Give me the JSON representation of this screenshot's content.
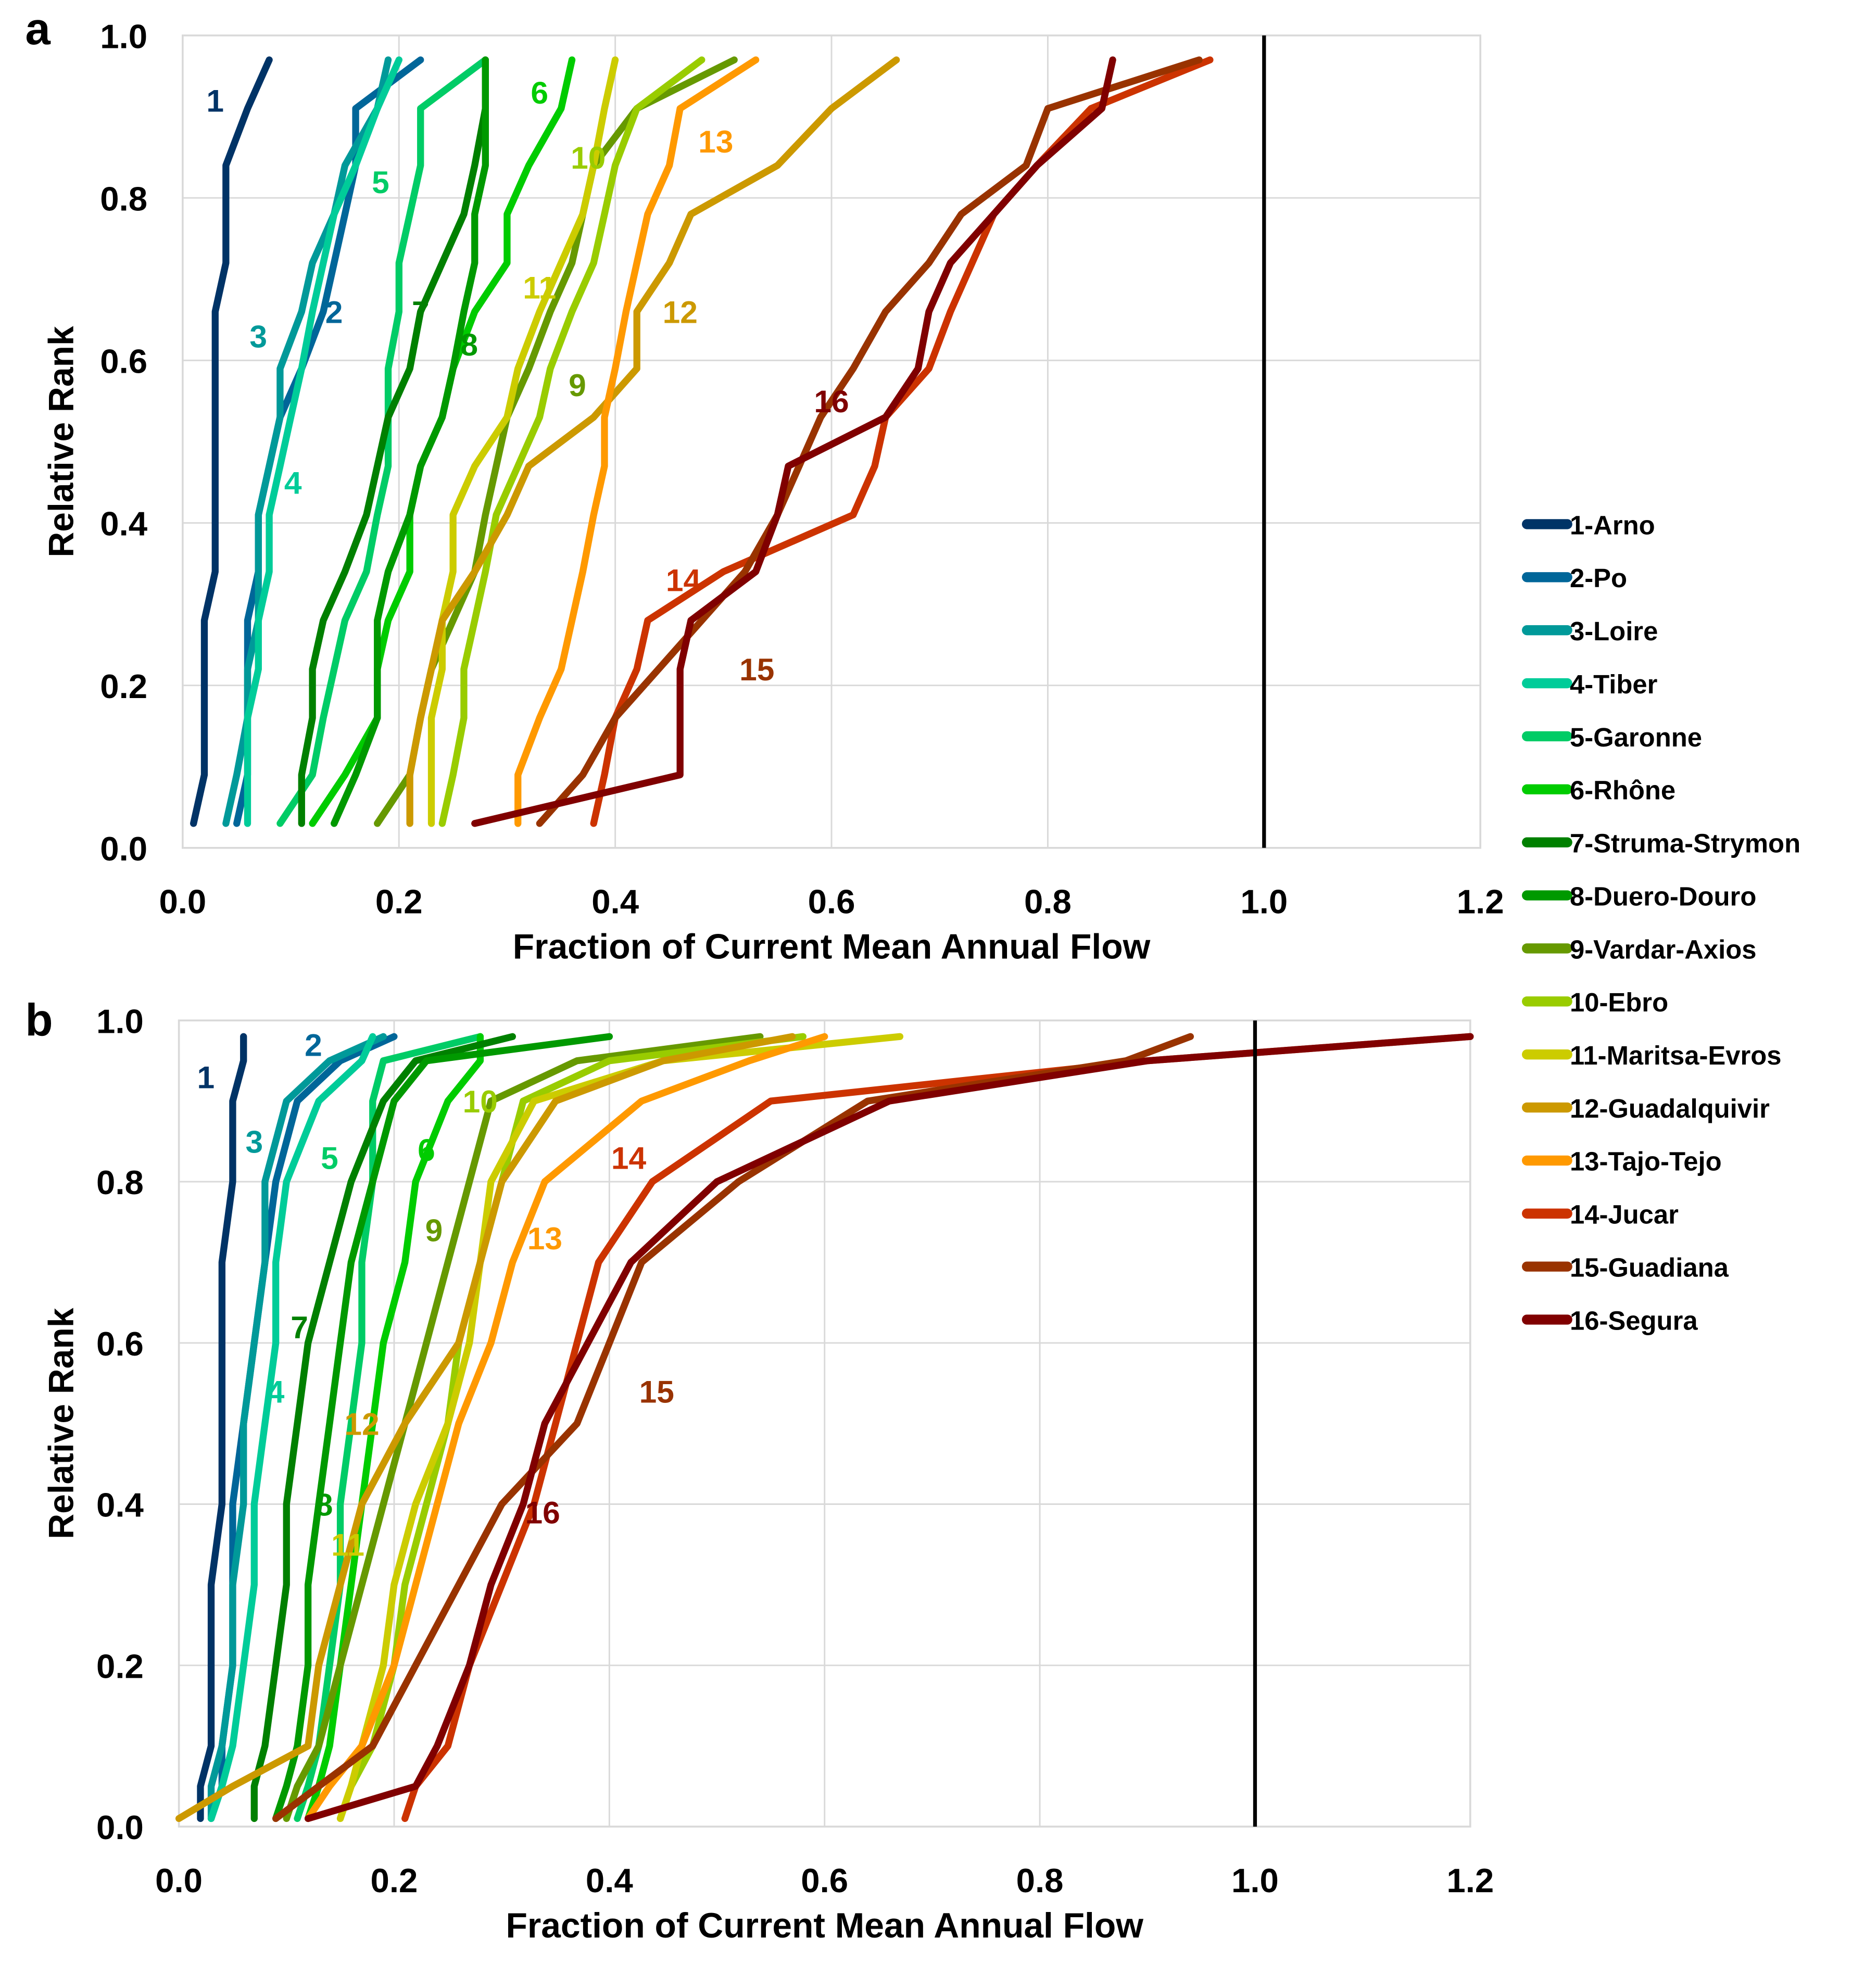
{
  "series_meta": [
    {
      "name": "1-Arno",
      "label": "1",
      "color": "#003366"
    },
    {
      "name": "2-Po",
      "label": "2",
      "color": "#006699"
    },
    {
      "name": "3-Loire",
      "label": "3",
      "color": "#009999"
    },
    {
      "name": "4-Tiber",
      "label": "4",
      "color": "#00CC99"
    },
    {
      "name": "5-Garonne",
      "label": "5",
      "color": "#00CC66"
    },
    {
      "name": "6-Rhône",
      "label": "6",
      "color": "#00CC00"
    },
    {
      "name": "7-Struma-Strymon",
      "label": "7",
      "color": "#008000"
    },
    {
      "name": "8-Duero-Douro",
      "label": "8",
      "color": "#009900"
    },
    {
      "name": "9-Vardar-Axios",
      "label": "9",
      "color": "#669900"
    },
    {
      "name": "10-Ebro",
      "label": "10",
      "color": "#99CC00"
    },
    {
      "name": "11-Maritsa-Evros",
      "label": "11",
      "color": "#CCCC00"
    },
    {
      "name": "12-Guadalquivir",
      "label": "12",
      "color": "#CC9900"
    },
    {
      "name": "13-Tajo-Tejo",
      "label": "13",
      "color": "#FF9900"
    },
    {
      "name": "14-Jucar",
      "label": "14",
      "color": "#CC3300"
    },
    {
      "name": "15-Guadiana",
      "label": "15",
      "color": "#993300"
    },
    {
      "name": "16-Segura",
      "label": "16",
      "color": "#800000"
    }
  ],
  "chart_data": [
    {
      "type": "line",
      "panel": "a",
      "xlabel": "Fraction of Current Mean Annual Flow",
      "ylabel": "Relative Rank",
      "xlim": [
        0,
        1.2
      ],
      "ylim": [
        0,
        1.0
      ],
      "xticks": [
        "0.0",
        "0.2",
        "0.4",
        "0.6",
        "0.8",
        "1.0",
        "1.2"
      ],
      "yticks": [
        "0.0",
        "0.2",
        "0.4",
        "0.6",
        "0.8",
        "1.0"
      ],
      "reference_line_x": 1.0,
      "grid": true,
      "legend": "right",
      "y": [
        0.03,
        0.09,
        0.16,
        0.22,
        0.28,
        0.34,
        0.41,
        0.47,
        0.53,
        0.59,
        0.66,
        0.72,
        0.78,
        0.84,
        0.91,
        0.97
      ],
      "series": [
        {
          "name": "1-Arno",
          "values": [
            0.01,
            0.02,
            0.02,
            0.02,
            0.02,
            0.03,
            0.03,
            0.03,
            0.03,
            0.03,
            0.03,
            0.04,
            0.04,
            0.04,
            0.06,
            0.08
          ],
          "label_at": [
            0.03,
            0.92
          ]
        },
        {
          "name": "2-Po",
          "values": [
            0.05,
            0.06,
            0.06,
            0.06,
            0.06,
            0.07,
            0.07,
            0.08,
            0.09,
            0.11,
            0.13,
            0.14,
            0.15,
            0.16,
            0.16,
            0.22
          ],
          "label_at": [
            0.14,
            0.66
          ]
        },
        {
          "name": "3-Loire",
          "values": [
            0.04,
            0.05,
            0.06,
            0.06,
            0.07,
            0.07,
            0.07,
            0.08,
            0.09,
            0.09,
            0.11,
            0.12,
            0.14,
            0.15,
            0.18,
            0.19
          ],
          "label_at": [
            0.07,
            0.63
          ]
        },
        {
          "name": "4-Tiber",
          "values": [
            0.06,
            0.06,
            0.06,
            0.07,
            0.07,
            0.08,
            0.08,
            0.09,
            0.1,
            0.11,
            0.12,
            0.13,
            0.14,
            0.16,
            0.18,
            0.2
          ],
          "label_at": [
            0.102,
            0.45
          ]
        },
        {
          "name": "5-Garonne",
          "values": [
            0.09,
            0.12,
            0.13,
            0.14,
            0.15,
            0.17,
            0.18,
            0.19,
            0.19,
            0.19,
            0.2,
            0.2,
            0.21,
            0.22,
            0.22,
            0.28
          ],
          "label_at": [
            0.183,
            0.82
          ]
        },
        {
          "name": "6-Rhône",
          "values": [
            0.12,
            0.15,
            0.18,
            0.18,
            0.19,
            0.21,
            0.21,
            0.22,
            0.24,
            0.25,
            0.27,
            0.3,
            0.3,
            0.32,
            0.35,
            0.36
          ],
          "label_at": [
            0.33,
            0.93
          ]
        },
        {
          "name": "7-Struma-Strymon",
          "values": [
            0.11,
            0.11,
            0.12,
            0.12,
            0.13,
            0.15,
            0.17,
            0.18,
            0.19,
            0.21,
            0.22,
            0.24,
            0.26,
            0.27,
            0.28,
            0.28
          ],
          "label_at": [
            0.22,
            0.66
          ]
        },
        {
          "name": "8-Duero-Douro",
          "values": [
            0.14,
            0.16,
            0.18,
            0.18,
            0.18,
            0.19,
            0.21,
            0.22,
            0.24,
            0.25,
            0.26,
            0.27,
            0.27,
            0.28,
            0.28,
            0.28
          ],
          "label_at": [
            0.265,
            0.62
          ]
        },
        {
          "name": "9-Vardar-Axios",
          "values": [
            0.18,
            0.21,
            0.22,
            0.23,
            0.25,
            0.27,
            0.28,
            0.29,
            0.3,
            0.32,
            0.34,
            0.36,
            0.37,
            0.38,
            0.42,
            0.51
          ],
          "label_at": [
            0.365,
            0.57
          ]
        },
        {
          "name": "10-Ebro",
          "values": [
            0.24,
            0.25,
            0.26,
            0.26,
            0.27,
            0.28,
            0.29,
            0.31,
            0.33,
            0.34,
            0.36,
            0.38,
            0.39,
            0.4,
            0.42,
            0.48
          ],
          "label_at": [
            0.375,
            0.85
          ]
        },
        {
          "name": "11-Maritsa-Evros",
          "values": [
            0.23,
            0.23,
            0.23,
            0.24,
            0.24,
            0.25,
            0.25,
            0.27,
            0.3,
            0.31,
            0.33,
            0.35,
            0.37,
            0.38,
            0.39,
            0.4
          ],
          "label_at": [
            0.33,
            0.69
          ]
        },
        {
          "name": "12-Guadalquivir",
          "values": [
            0.21,
            0.21,
            0.22,
            0.23,
            0.24,
            0.27,
            0.3,
            0.32,
            0.38,
            0.42,
            0.42,
            0.45,
            0.47,
            0.55,
            0.6,
            0.66
          ],
          "label_at": [
            0.46,
            0.66
          ]
        },
        {
          "name": "13-Tajo-Tejo",
          "values": [
            0.31,
            0.31,
            0.33,
            0.35,
            0.36,
            0.37,
            0.38,
            0.39,
            0.39,
            0.4,
            0.41,
            0.42,
            0.43,
            0.45,
            0.46,
            0.53
          ],
          "label_at": [
            0.493,
            0.87
          ]
        },
        {
          "name": "14-Jucar",
          "values": [
            0.38,
            0.39,
            0.4,
            0.42,
            0.43,
            0.5,
            0.62,
            0.64,
            0.65,
            0.69,
            0.71,
            0.73,
            0.75,
            0.79,
            0.84,
            0.95
          ],
          "label_at": [
            0.463,
            0.33
          ]
        },
        {
          "name": "15-Guadiana",
          "values": [
            0.33,
            0.37,
            0.4,
            0.44,
            0.48,
            0.52,
            0.55,
            0.57,
            0.59,
            0.62,
            0.65,
            0.69,
            0.72,
            0.78,
            0.8,
            0.94
          ],
          "label_at": [
            0.531,
            0.22
          ]
        },
        {
          "name": "16-Segura",
          "values": [
            0.27,
            0.46,
            0.46,
            0.46,
            0.47,
            0.53,
            0.55,
            0.56,
            0.65,
            0.68,
            0.69,
            0.71,
            0.75,
            0.79,
            0.85,
            0.86
          ],
          "label_at": [
            0.6,
            0.55
          ]
        }
      ]
    },
    {
      "type": "line",
      "panel": "b",
      "xlabel": "Fraction of Current Mean Annual Flow",
      "ylabel": "Relative Rank",
      "xlim": [
        0,
        1.2
      ],
      "ylim": [
        0,
        1.0
      ],
      "xticks": [
        "0.0",
        "0.2",
        "0.4",
        "0.6",
        "0.8",
        "1.0",
        "1.2"
      ],
      "yticks": [
        "0.0",
        "0.2",
        "0.4",
        "0.6",
        "0.8",
        "1.0"
      ],
      "reference_line_x": 1.0,
      "grid": true,
      "y": [
        0.01,
        0.05,
        0.1,
        0.2,
        0.3,
        0.4,
        0.5,
        0.6,
        0.7,
        0.8,
        0.9,
        0.95,
        0.98
      ],
      "series": [
        {
          "name": "1-Arno",
          "values": [
            0.02,
            0.02,
            0.03,
            0.03,
            0.03,
            0.04,
            0.04,
            0.04,
            0.04,
            0.05,
            0.05,
            0.06,
            0.06
          ],
          "label_at": [
            0.025,
            0.93
          ]
        },
        {
          "name": "2-Po",
          "values": [
            0.03,
            0.04,
            0.04,
            0.05,
            0.05,
            0.05,
            0.06,
            0.07,
            0.08,
            0.09,
            0.11,
            0.15,
            0.2
          ],
          "label_at": [
            0.125,
            0.97
          ]
        },
        {
          "name": "3-Loire",
          "values": [
            0.03,
            0.03,
            0.04,
            0.05,
            0.05,
            0.06,
            0.06,
            0.07,
            0.08,
            0.08,
            0.1,
            0.14,
            0.19
          ],
          "label_at": [
            0.07,
            0.85
          ]
        },
        {
          "name": "4-Tiber",
          "values": [
            0.03,
            0.04,
            0.05,
            0.06,
            0.07,
            0.07,
            0.08,
            0.09,
            0.09,
            0.1,
            0.13,
            0.17,
            0.18
          ],
          "label_at": [
            0.09,
            0.54
          ]
        },
        {
          "name": "5-Garonne",
          "values": [
            0.11,
            0.12,
            0.13,
            0.14,
            0.15,
            0.15,
            0.16,
            0.17,
            0.17,
            0.18,
            0.18,
            0.19,
            0.28
          ],
          "label_at": [
            0.14,
            0.83
          ]
        },
        {
          "name": "6-Rhône",
          "values": [
            0.12,
            0.13,
            0.14,
            0.15,
            0.16,
            0.17,
            0.18,
            0.19,
            0.21,
            0.22,
            0.25,
            0.28,
            0.28
          ],
          "label_at": [
            0.23,
            0.84
          ]
        },
        {
          "name": "7-Struma-Strymon",
          "values": [
            0.07,
            0.07,
            0.08,
            0.09,
            0.1,
            0.1,
            0.11,
            0.12,
            0.14,
            0.16,
            0.19,
            0.22,
            0.31
          ],
          "label_at": [
            0.112,
            0.62
          ]
        },
        {
          "name": "8-Duero-Douro",
          "values": [
            0.09,
            0.1,
            0.11,
            0.12,
            0.12,
            0.13,
            0.14,
            0.15,
            0.16,
            0.18,
            0.2,
            0.23,
            0.4
          ],
          "label_at": [
            0.135,
            0.4
          ]
        },
        {
          "name": "9-Vardar-Axios",
          "values": [
            0.1,
            0.11,
            0.13,
            0.15,
            0.17,
            0.19,
            0.21,
            0.23,
            0.25,
            0.27,
            0.29,
            0.37,
            0.54
          ],
          "label_at": [
            0.237,
            0.74
          ]
        },
        {
          "name": "10-Ebro",
          "values": [
            0.15,
            0.16,
            0.18,
            0.2,
            0.21,
            0.23,
            0.25,
            0.26,
            0.28,
            0.3,
            0.32,
            0.4,
            0.58
          ],
          "label_at": [
            0.28,
            0.9
          ]
        },
        {
          "name": "11-Maritsa-Evros",
          "values": [
            0.15,
            0.16,
            0.17,
            0.19,
            0.2,
            0.22,
            0.25,
            0.27,
            0.28,
            0.29,
            0.33,
            0.45,
            0.67
          ],
          "label_at": [
            0.157,
            0.35
          ]
        },
        {
          "name": "12-Guadalquivir",
          "values": [
            0.0,
            0.05,
            0.12,
            0.13,
            0.15,
            0.17,
            0.21,
            0.26,
            0.28,
            0.3,
            0.35,
            0.45,
            0.57
          ],
          "label_at": [
            0.17,
            0.5
          ]
        },
        {
          "name": "13-Tajo-Tejo",
          "values": [
            0.12,
            0.14,
            0.17,
            0.2,
            0.22,
            0.24,
            0.26,
            0.29,
            0.31,
            0.34,
            0.43,
            0.53,
            0.6
          ],
          "label_at": [
            0.34,
            0.73
          ]
        },
        {
          "name": "14-Jucar",
          "values": [
            0.21,
            0.22,
            0.25,
            0.27,
            0.3,
            0.33,
            0.35,
            0.37,
            0.39,
            0.44,
            0.55,
            0.9,
            1.2
          ],
          "label_at": [
            0.418,
            0.83
          ]
        },
        {
          "name": "15-Guadiana",
          "values": [
            0.09,
            0.13,
            0.18,
            0.22,
            0.26,
            0.3,
            0.37,
            0.4,
            0.43,
            0.52,
            0.64,
            0.88,
            0.94
          ],
          "label_at": [
            0.444,
            0.54
          ]
        },
        {
          "name": "16-Segura",
          "values": [
            0.12,
            0.22,
            0.24,
            0.27,
            0.29,
            0.32,
            0.34,
            0.38,
            0.42,
            0.5,
            0.66,
            0.9,
            1.2
          ],
          "label_at": [
            0.338,
            0.39
          ]
        }
      ]
    }
  ]
}
